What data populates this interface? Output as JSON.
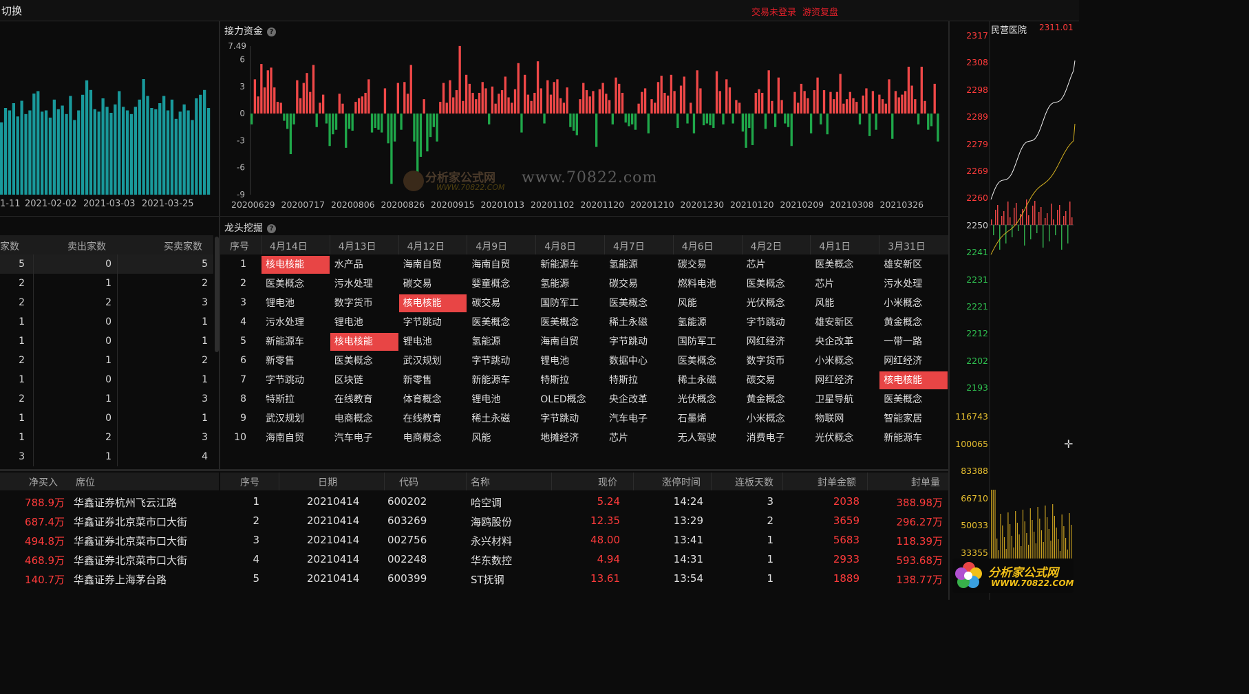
{
  "window": {
    "title": "切换",
    "status_login": "交易未登录",
    "status_review": "游资复盘"
  },
  "left_chart": {
    "x_ticks": [
      "1-11",
      "2021-02-02",
      "2021-03-03",
      "2021-03-25"
    ],
    "color": "#19999b",
    "values": [
      60,
      72,
      70,
      76,
      65,
      78,
      67,
      70,
      84,
      86,
      69,
      70,
      64,
      79,
      71,
      74,
      67,
      82,
      62,
      70,
      83,
      95,
      87,
      71,
      69,
      80,
      73,
      68,
      75,
      86,
      73,
      70,
      67,
      73,
      79,
      96,
      82,
      72,
      71,
      76,
      82,
      70,
      79,
      63,
      69,
      75,
      70,
      62,
      80,
      83,
      87,
      72
    ]
  },
  "jieli": {
    "title": "接力资金",
    "help": "?",
    "y_top": "7.49",
    "y_ticks": [
      "6",
      "3",
      "0",
      "-3",
      "-6",
      "-9"
    ],
    "x_ticks": [
      "20200629",
      "20200717",
      "20200806",
      "20200826",
      "20200915",
      "20201013",
      "20201102",
      "20201120",
      "20201210",
      "20201230",
      "20210120",
      "20210209",
      "20210308",
      "20210326"
    ],
    "watermark_url": "www.70822.com",
    "watermark_logo": "分析家公式网",
    "watermark_logo_url": "WWW.70822.COM",
    "positive_color": "#f04848",
    "negative_color": "#1fa84a"
  },
  "chart_data": {
    "type": "bar",
    "title": "接力资金",
    "ylim": [
      -9,
      7.49
    ],
    "series": [
      {
        "values": [
          -1.2,
          3.8,
          1.9,
          5.5,
          2.9,
          4.8,
          5.1,
          2.9,
          1.3,
          1.2,
          -0.8,
          -1.7,
          -4.5,
          -1.2,
          3.7,
          1.7,
          3.4,
          4.5,
          2.4,
          5.4,
          -1.5,
          1.2,
          2.1,
          -1.1,
          -3.6,
          -2.3,
          -1.8,
          2.2,
          1.1,
          -3.8,
          -1.7,
          -1.9,
          1.3,
          1.7,
          1.9,
          2.3,
          3.8,
          -2.1,
          -1.6,
          -1.8,
          -2.1,
          2.8,
          -3.3,
          -7.8,
          -3.1,
          3.4,
          -1.8,
          3.5,
          2.2,
          5.4,
          -3.1,
          -6.5,
          -4.8,
          1.6,
          -4.2,
          -2.6,
          -1.5,
          -3.1,
          1.3,
          3.4,
          1.2,
          3.7,
          1.8,
          2.6,
          7.5,
          1.4,
          4.3,
          3.3,
          2.3,
          1.6,
          2.3,
          3.5,
          2.8,
          -1.2,
          3.0,
          1.1,
          2.2,
          2.6,
          4.1,
          1.8,
          1.2,
          2.7,
          5.6,
          -2.1,
          4.3,
          2.1,
          1.4,
          2.3,
          5.8,
          2.8,
          -1.1,
          3.7,
          2.1,
          3.5,
          3.8,
          1.7,
          1.2,
          2.9,
          -1.5,
          -1.9,
          -2.4,
          1.6,
          3.4,
          2.6,
          1.9,
          2.5,
          -3.7,
          2.7,
          3.4,
          2.2,
          1.5,
          -1.2,
          4.0,
          3.3,
          2.3,
          -1.0,
          -1.4,
          -1.2,
          -1.8,
          1.1,
          2.4,
          2.8,
          -2.2,
          1.6,
          1.2,
          3.5,
          4.2,
          2.3,
          2.0,
          4.3,
          2.5,
          -1.6,
          3.1,
          4.1,
          -1.1,
          1.2,
          -2.2,
          4.8,
          2.8,
          -1.3,
          -1.1,
          -1.3,
          -1.6,
          4.7,
          2.5,
          -1.2,
          3.8,
          2.9,
          -1.1,
          1.5,
          1.2,
          -2.0,
          -3.8,
          -1.6,
          -3.5,
          2.3,
          2.7,
          2.3,
          -1.7,
          4.8,
          1.4,
          -1.5,
          4.0,
          1.5,
          -1.1,
          -1.5,
          -3.6,
          2.4,
          1.2,
          3.3,
          2.5,
          1.7,
          -2.2,
          2.6,
          4.0,
          -1.2,
          2.6,
          -2.3,
          2.4,
          1.6,
          2.4,
          4.4,
          1.1,
          1.6,
          2.4,
          1.7,
          1.3,
          -1.2,
          2.0,
          2.8,
          -2.5,
          2.5,
          -1.8,
          2.1,
          1.6,
          1.1,
          3.8,
          -2.8,
          2.5,
          1.8,
          2.1,
          2.5,
          5.2,
          3.1,
          1.6,
          -1.2,
          5.2,
          1.4,
          -1.8,
          -1.4,
          3.3,
          -3.1
        ]
      }
    ]
  },
  "dragon": {
    "title": "龙头挖掘",
    "help": "?",
    "seq_header": "序号",
    "dates": [
      "4月14日",
      "4月13日",
      "4月12日",
      "4月9日",
      "4月8日",
      "4月7日",
      "4月6日",
      "4月2日",
      "4月1日",
      "3月31日"
    ],
    "highlight_color": "#e84545",
    "rows": [
      {
        "seq": "1",
        "cells": [
          "核电核能",
          "水产品",
          "海南自贸",
          "海南自贸",
          "新能源车",
          "氢能源",
          "碳交易",
          "芯片",
          "医美概念",
          "雄安新区"
        ],
        "hl": [
          0
        ]
      },
      {
        "seq": "2",
        "cells": [
          "医美概念",
          "污水处理",
          "碳交易",
          "婴童概念",
          "氢能源",
          "碳交易",
          "燃料电池",
          "医美概念",
          "芯片",
          "污水处理"
        ],
        "hl": []
      },
      {
        "seq": "3",
        "cells": [
          "锂电池",
          "数字货币",
          "核电核能",
          "碳交易",
          "国防军工",
          "医美概念",
          "风能",
          "光伏概念",
          "风能",
          "小米概念"
        ],
        "hl": [
          2
        ]
      },
      {
        "seq": "4",
        "cells": [
          "污水处理",
          "锂电池",
          "字节跳动",
          "医美概念",
          "医美概念",
          "稀土永磁",
          "氢能源",
          "字节跳动",
          "雄安新区",
          "黄金概念"
        ],
        "hl": []
      },
      {
        "seq": "5",
        "cells": [
          "新能源车",
          "核电核能",
          "锂电池",
          "氢能源",
          "海南自贸",
          "字节跳动",
          "国防军工",
          "网红经济",
          "央企改革",
          "一带一路"
        ],
        "hl": [
          1
        ]
      },
      {
        "seq": "6",
        "cells": [
          "新零售",
          "医美概念",
          "武汉规划",
          "字节跳动",
          "锂电池",
          "数据中心",
          "医美概念",
          "数字货币",
          "小米概念",
          "网红经济"
        ],
        "hl": []
      },
      {
        "seq": "7",
        "cells": [
          "字节跳动",
          "区块链",
          "新零售",
          "新能源车",
          "特斯拉",
          "特斯拉",
          "稀土永磁",
          "碳交易",
          "网红经济",
          "核电核能"
        ],
        "hl": [
          9
        ]
      },
      {
        "seq": "8",
        "cells": [
          "特斯拉",
          "在线教育",
          "体育概念",
          "锂电池",
          "OLED概念",
          "央企改革",
          "光伏概念",
          "黄金概念",
          "卫星导航",
          "医美概念"
        ],
        "hl": []
      },
      {
        "seq": "9",
        "cells": [
          "武汉规划",
          "电商概念",
          "在线教育",
          "稀土永磁",
          "字节跳动",
          "汽车电子",
          "石墨烯",
          "小米概念",
          "物联网",
          "智能家居"
        ],
        "hl": []
      },
      {
        "seq": "10",
        "cells": [
          "海南自贸",
          "汽车电子",
          "电商概念",
          "风能",
          "地摊经济",
          "芯片",
          "无人驾驶",
          "消费电子",
          "光伏概念",
          "新能源车"
        ],
        "hl": []
      }
    ]
  },
  "mid_left": {
    "headers": [
      "家数",
      "卖出家数",
      "买卖家数"
    ],
    "rows": [
      [
        "5",
        "0",
        "5"
      ],
      [
        "2",
        "1",
        "2"
      ],
      [
        "2",
        "2",
        "3"
      ],
      [
        "1",
        "0",
        "1"
      ],
      [
        "1",
        "0",
        "1"
      ],
      [
        "2",
        "1",
        "2"
      ],
      [
        "1",
        "0",
        "1"
      ],
      [
        "2",
        "1",
        "3"
      ],
      [
        "1",
        "0",
        "1"
      ],
      [
        "1",
        "2",
        "3"
      ],
      [
        "3",
        "1",
        "4"
      ]
    ]
  },
  "seats": {
    "headers": [
      "净买入",
      "席位"
    ],
    "rows": [
      [
        "788.9万",
        "华鑫证券杭州飞云江路"
      ],
      [
        "687.4万",
        "华鑫证券北京菜市口大街"
      ],
      [
        "494.8万",
        "华鑫证券北京菜市口大街"
      ],
      [
        "468.9万",
        "华鑫证券北京菜市口大街"
      ],
      [
        "140.7万",
        "华鑫证券上海茅台路"
      ]
    ]
  },
  "limitup": {
    "headers": [
      "序号",
      "日期",
      "代码",
      "名称",
      "现价",
      "涨停时间",
      "连板天数",
      "封单金额",
      "封单量"
    ],
    "rows": [
      [
        "1",
        "20210414",
        "600202",
        "哈空调",
        "5.24",
        "14:24",
        "3",
        "2038",
        "388.98万"
      ],
      [
        "2",
        "20210414",
        "603269",
        "海鸥股份",
        "12.35",
        "13:29",
        "2",
        "3659",
        "296.27万"
      ],
      [
        "3",
        "20210414",
        "002756",
        "永兴材料",
        "48.00",
        "13:41",
        "1",
        "5683",
        "118.39万"
      ],
      [
        "4",
        "20210414",
        "002248",
        "华东数控",
        "4.94",
        "14:31",
        "1",
        "2933",
        "593.68万"
      ],
      [
        "5",
        "20210414",
        "600399",
        "ST抚钢",
        "13.61",
        "13:54",
        "1",
        "1889",
        "138.77万"
      ]
    ]
  },
  "right": {
    "stock_name": "民营医院",
    "stock_price": "2311.01",
    "price_ticks": [
      "2317",
      "2308",
      "2298",
      "2289",
      "2279",
      "2269",
      "2260",
      "2250",
      "2241",
      "2231",
      "2221",
      "2212",
      "2202",
      "2193"
    ],
    "volume_ticks": [
      "116743",
      "100065",
      "83388",
      "66710",
      "50033",
      "33355"
    ],
    "logo_text": "分析家公式网",
    "logo_url": "WWW.70822.COM"
  }
}
